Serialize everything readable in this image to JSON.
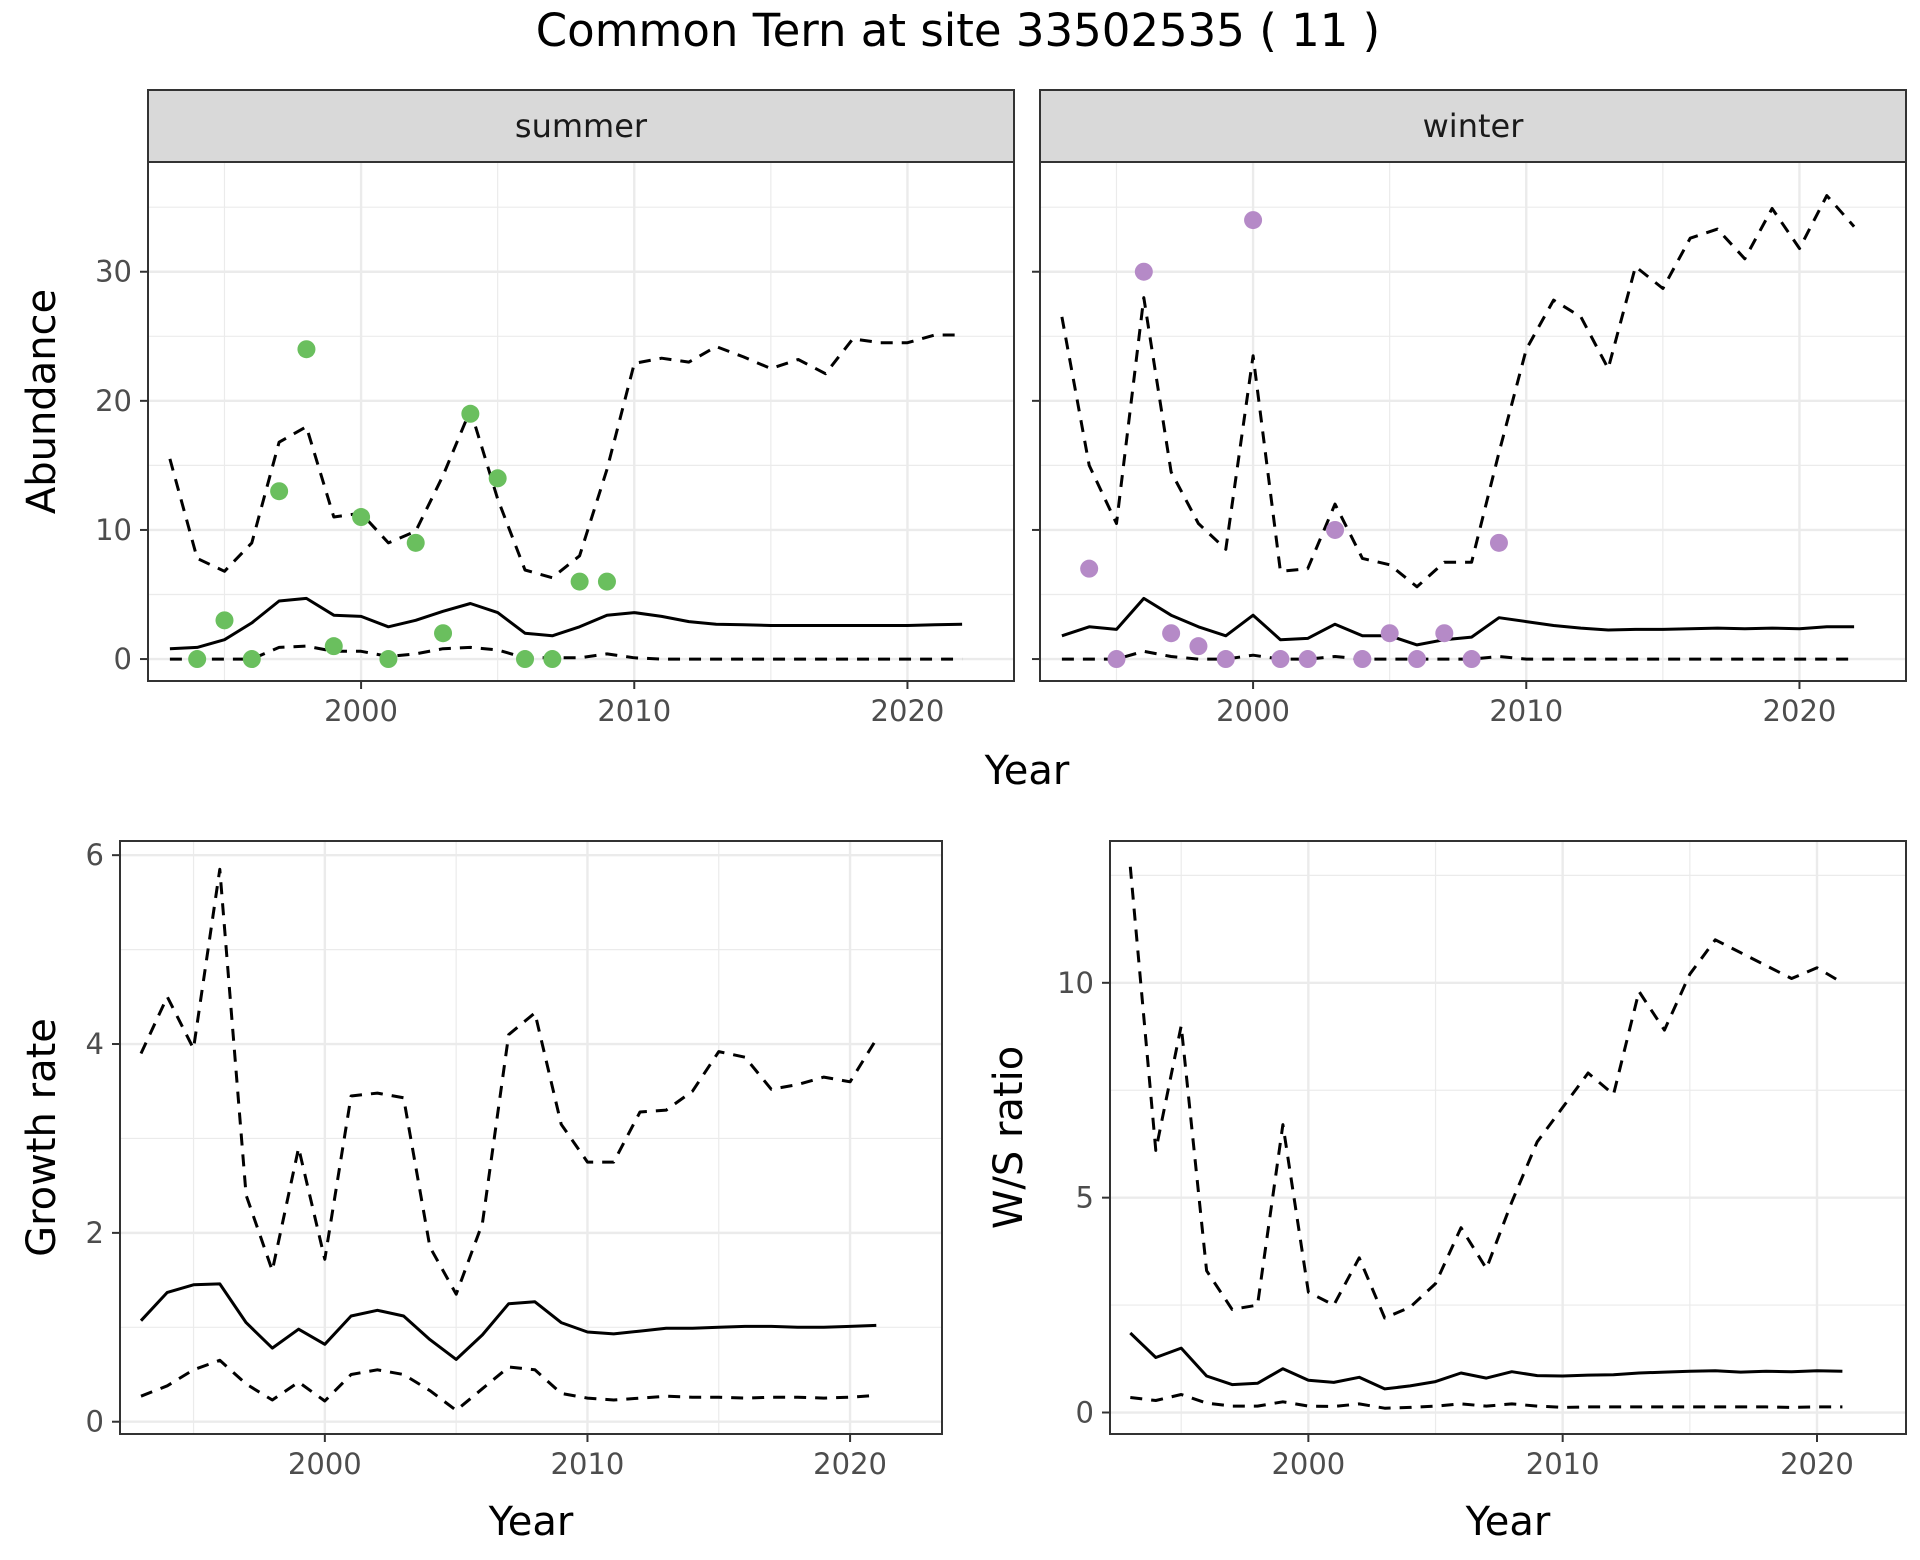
{
  "title": "Common Tern at site 33502535 ( 11 )",
  "colors": {
    "summer_points": "#6abf5e",
    "winter_points": "#b58ac7",
    "lines": "#000000",
    "strip_bg": "#d9d9d9",
    "grid": "#ebebeb"
  },
  "chart_data": [
    {
      "id": "summer",
      "type": "line",
      "strip_label": "summer",
      "xlabel": "Year",
      "ylabel": "Abundance",
      "xlim": [
        1992.2,
        2023.9
      ],
      "ylim": [
        -1.7,
        38.5
      ],
      "xticks": [
        2000,
        2010,
        2020
      ],
      "yticks": [
        0,
        10,
        20,
        30
      ],
      "grid": true,
      "series": [
        {
          "style": "solid",
          "x": [
            1993,
            1994,
            1995,
            1996,
            1997,
            1998,
            1999,
            2000,
            2001,
            2002,
            2003,
            2004,
            2005,
            2006,
            2007,
            2008,
            2009,
            2010,
            2011,
            2012,
            2013,
            2014,
            2015,
            2016,
            2017,
            2018,
            2019,
            2020,
            2021,
            2022
          ],
          "y": [
            0.8,
            0.9,
            1.5,
            2.8,
            4.5,
            4.7,
            3.4,
            3.3,
            2.5,
            3.0,
            3.7,
            4.3,
            3.6,
            2.0,
            1.8,
            2.5,
            3.4,
            3.6,
            3.3,
            2.9,
            2.7,
            2.65,
            2.6,
            2.6,
            2.6,
            2.6,
            2.6,
            2.6,
            2.65,
            2.7
          ]
        },
        {
          "style": "dashed",
          "x": [
            1993,
            1994,
            1995,
            1996,
            1997,
            1998,
            1999,
            2000,
            2001,
            2002,
            2003,
            2004,
            2005,
            2006,
            2007,
            2008,
            2009,
            2010,
            2011,
            2012,
            2013,
            2014,
            2015,
            2016,
            2017,
            2018,
            2019,
            2020,
            2021,
            2022
          ],
          "y": [
            15.5,
            7.8,
            6.8,
            9.0,
            16.8,
            18.0,
            11.0,
            11.3,
            9.0,
            9.9,
            14.2,
            19.3,
            12.4,
            6.9,
            6.3,
            8.0,
            14.7,
            22.9,
            23.3,
            23.0,
            24.2,
            23.4,
            22.5,
            23.2,
            22.1,
            24.8,
            24.5,
            24.5,
            25.1,
            25.1
          ]
        },
        {
          "style": "dashed",
          "x": [
            1993,
            1994,
            1995,
            1996,
            1997,
            1998,
            1999,
            2000,
            2001,
            2002,
            2003,
            2004,
            2005,
            2006,
            2007,
            2008,
            2009,
            2010,
            2011,
            2012,
            2013,
            2014,
            2015,
            2016,
            2017,
            2018,
            2019,
            2020,
            2021,
            2022
          ],
          "y": [
            0,
            0,
            0,
            0,
            0.9,
            1.0,
            0.6,
            0.6,
            0.2,
            0.4,
            0.8,
            0.9,
            0.7,
            0.1,
            0.1,
            0.1,
            0.4,
            0.1,
            0,
            0,
            0,
            0,
            0,
            0,
            0,
            0,
            0,
            0,
            0,
            0
          ]
        }
      ],
      "points": {
        "x": [
          1994,
          1995,
          1996,
          1997,
          1998,
          1999,
          2000,
          2001,
          2002,
          2003,
          2004,
          2005,
          2006,
          2007,
          2008,
          2009
        ],
        "y": [
          0,
          3,
          0,
          13,
          24,
          1,
          11,
          0,
          9,
          2,
          19,
          14,
          0,
          0,
          6,
          6
        ]
      }
    },
    {
      "id": "winter",
      "type": "line",
      "strip_label": "winter",
      "xlabel": "Year",
      "ylabel": "Abundance",
      "xlim": [
        1992.2,
        2023.9
      ],
      "ylim": [
        -1.7,
        38.5
      ],
      "xticks": [
        2000,
        2010,
        2020
      ],
      "yticks": [
        0,
        10,
        20,
        30
      ],
      "grid": true,
      "series": [
        {
          "style": "solid",
          "x": [
            1993,
            1994,
            1995,
            1996,
            1997,
            1998,
            1999,
            2000,
            2001,
            2002,
            2003,
            2004,
            2005,
            2006,
            2007,
            2008,
            2009,
            2010,
            2011,
            2012,
            2013,
            2014,
            2015,
            2016,
            2017,
            2018,
            2019,
            2020,
            2021,
            2022
          ],
          "y": [
            1.8,
            2.5,
            2.3,
            4.7,
            3.4,
            2.5,
            1.8,
            3.4,
            1.5,
            1.6,
            2.7,
            1.8,
            1.8,
            1.1,
            1.5,
            1.7,
            3.2,
            2.9,
            2.6,
            2.4,
            2.25,
            2.3,
            2.3,
            2.35,
            2.4,
            2.35,
            2.4,
            2.35,
            2.5,
            2.5
          ]
        },
        {
          "style": "dashed",
          "x": [
            1993,
            1994,
            1995,
            1996,
            1997,
            1998,
            1999,
            2000,
            2001,
            2002,
            2003,
            2004,
            2005,
            2006,
            2007,
            2008,
            2009,
            2010,
            2011,
            2012,
            2013,
            2014,
            2015,
            2016,
            2017,
            2018,
            2019,
            2020,
            2021,
            2022
          ],
          "y": [
            26.5,
            15.0,
            10.5,
            28.0,
            14.5,
            10.5,
            8.5,
            23.5,
            6.8,
            7.0,
            12.0,
            7.8,
            7.3,
            5.6,
            7.5,
            7.5,
            16.0,
            24.0,
            27.8,
            26.5,
            22.5,
            30.4,
            28.7,
            32.6,
            33.3,
            31.0,
            34.9,
            31.8,
            35.9,
            33.5
          ]
        },
        {
          "style": "dashed",
          "x": [
            1993,
            1994,
            1995,
            1996,
            1997,
            1998,
            1999,
            2000,
            2001,
            2002,
            2003,
            2004,
            2005,
            2006,
            2007,
            2008,
            2009,
            2010,
            2011,
            2012,
            2013,
            2014,
            2015,
            2016,
            2017,
            2018,
            2019,
            2020,
            2021,
            2022
          ],
          "y": [
            0,
            0,
            0,
            0.6,
            0.2,
            0,
            0,
            0.3,
            0,
            0,
            0.2,
            0,
            0,
            0,
            0,
            0,
            0.2,
            0,
            0,
            0,
            0,
            0,
            0,
            0,
            0,
            0,
            0,
            0,
            0,
            0
          ]
        }
      ],
      "points": {
        "x": [
          1994,
          1995,
          1996,
          1997,
          1998,
          1999,
          2000,
          2001,
          2002,
          2003,
          2004,
          2005,
          2006,
          2007,
          2008,
          2009
        ],
        "y": [
          7,
          0,
          30,
          2,
          1,
          0,
          34,
          0,
          0,
          10,
          0,
          2,
          0,
          2,
          0,
          9
        ]
      }
    },
    {
      "id": "growth",
      "type": "line",
      "xlabel": "Year",
      "ylabel": "Growth rate",
      "xlim": [
        1992.2,
        2023.5
      ],
      "ylim": [
        -0.13,
        6.15
      ],
      "xticks": [
        2000,
        2010,
        2020
      ],
      "yticks": [
        0,
        2,
        4,
        6
      ],
      "grid": true,
      "series": [
        {
          "style": "solid",
          "x": [
            1993,
            1994,
            1995,
            1996,
            1997,
            1998,
            1999,
            2000,
            2001,
            2002,
            2003,
            2004,
            2005,
            2006,
            2007,
            2008,
            2009,
            2010,
            2011,
            2012,
            2013,
            2014,
            2015,
            2016,
            2017,
            2018,
            2019,
            2020,
            2021
          ],
          "y": [
            1.07,
            1.37,
            1.45,
            1.46,
            1.05,
            0.78,
            0.98,
            0.82,
            1.12,
            1.18,
            1.12,
            0.87,
            0.66,
            0.92,
            1.25,
            1.27,
            1.05,
            0.95,
            0.93,
            0.96,
            0.99,
            0.99,
            1.0,
            1.01,
            1.01,
            1.0,
            1.0,
            1.01,
            1.02
          ]
        },
        {
          "style": "dashed",
          "x": [
            1993,
            1994,
            1995,
            1996,
            1997,
            1998,
            1999,
            2000,
            2001,
            2002,
            2003,
            2004,
            2005,
            2006,
            2007,
            2008,
            2009,
            2010,
            2011,
            2012,
            2013,
            2014,
            2015,
            2016,
            2017,
            2018,
            2019,
            2020,
            2021
          ],
          "y": [
            3.9,
            4.5,
            3.95,
            5.85,
            2.4,
            1.6,
            2.9,
            1.72,
            3.45,
            3.48,
            3.43,
            1.85,
            1.35,
            2.1,
            4.1,
            4.33,
            3.15,
            2.75,
            2.75,
            3.28,
            3.3,
            3.5,
            3.92,
            3.86,
            3.52,
            3.57,
            3.65,
            3.6,
            4.05
          ]
        },
        {
          "style": "dashed",
          "x": [
            1993,
            1994,
            1995,
            1996,
            1997,
            1998,
            1999,
            2000,
            2001,
            2002,
            2003,
            2004,
            2005,
            2006,
            2007,
            2008,
            2009,
            2010,
            2011,
            2012,
            2013,
            2014,
            2015,
            2016,
            2017,
            2018,
            2019,
            2020,
            2021
          ],
          "y": [
            0.27,
            0.38,
            0.55,
            0.65,
            0.4,
            0.23,
            0.42,
            0.22,
            0.5,
            0.55,
            0.5,
            0.33,
            0.12,
            0.35,
            0.58,
            0.55,
            0.3,
            0.25,
            0.23,
            0.25,
            0.27,
            0.26,
            0.26,
            0.25,
            0.26,
            0.26,
            0.25,
            0.26,
            0.28
          ]
        }
      ]
    },
    {
      "id": "ratio",
      "type": "line",
      "xlabel": "Year",
      "ylabel": "W/S ratio",
      "xlim": [
        1992.2,
        2023.5
      ],
      "ylim": [
        -0.5,
        13.3
      ],
      "xticks": [
        2000,
        2010,
        2020
      ],
      "yticks": [
        0,
        5,
        10
      ],
      "grid": true,
      "series": [
        {
          "style": "solid",
          "x": [
            1993,
            1994,
            1995,
            1996,
            1997,
            1998,
            1999,
            2000,
            2001,
            2002,
            2003,
            2004,
            2005,
            2006,
            2007,
            2008,
            2009,
            2010,
            2011,
            2012,
            2013,
            2014,
            2015,
            2016,
            2017,
            2018,
            2019,
            2020,
            2021
          ],
          "y": [
            1.85,
            1.28,
            1.5,
            0.85,
            0.65,
            0.68,
            1.02,
            0.75,
            0.7,
            0.82,
            0.55,
            0.62,
            0.72,
            0.92,
            0.8,
            0.95,
            0.86,
            0.85,
            0.87,
            0.88,
            0.92,
            0.94,
            0.96,
            0.97,
            0.94,
            0.96,
            0.95,
            0.97,
            0.96
          ]
        },
        {
          "style": "dashed",
          "x": [
            1993,
            1994,
            1995,
            1996,
            1997,
            1998,
            1999,
            2000,
            2001,
            2002,
            2003,
            2004,
            2005,
            2006,
            2007,
            2008,
            2009,
            2010,
            2011,
            2012,
            2013,
            2014,
            2015,
            2016,
            2017,
            2018,
            2019,
            2020,
            2021
          ],
          "y": [
            12.7,
            6.1,
            9.0,
            3.3,
            2.4,
            2.5,
            6.7,
            2.8,
            2.5,
            3.6,
            2.2,
            2.45,
            3.0,
            4.3,
            3.35,
            4.9,
            6.3,
            7.1,
            7.9,
            7.4,
            9.8,
            8.9,
            10.2,
            11.0,
            10.7,
            10.4,
            10.1,
            10.35,
            10.0
          ]
        },
        {
          "style": "dashed",
          "x": [
            1993,
            1994,
            1995,
            1996,
            1997,
            1998,
            1999,
            2000,
            2001,
            2002,
            2003,
            2004,
            2005,
            2006,
            2007,
            2008,
            2009,
            2010,
            2011,
            2012,
            2013,
            2014,
            2015,
            2016,
            2017,
            2018,
            2019,
            2020,
            2021
          ],
          "y": [
            0.35,
            0.28,
            0.42,
            0.22,
            0.15,
            0.15,
            0.25,
            0.15,
            0.14,
            0.2,
            0.1,
            0.12,
            0.15,
            0.2,
            0.15,
            0.2,
            0.15,
            0.12,
            0.13,
            0.13,
            0.13,
            0.13,
            0.13,
            0.13,
            0.13,
            0.13,
            0.12,
            0.13,
            0.13
          ]
        }
      ]
    }
  ]
}
